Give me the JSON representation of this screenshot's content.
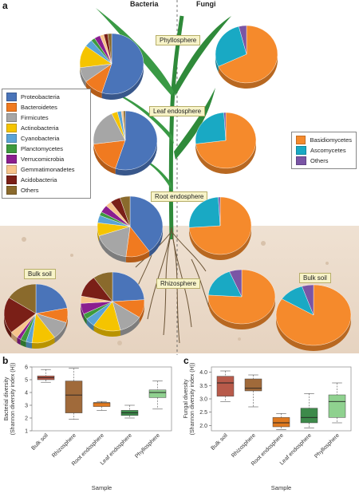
{
  "panel_a": {
    "letter": "a",
    "col_bacteria": "Bacteria",
    "col_fungi": "Fungi",
    "zones": {
      "phyllosphere": "Phyllosphere",
      "leaf_endosphere": "Leaf endosphere",
      "root_endosphere": "Root endosphere",
      "rhizosphere": "Rhizosphere",
      "bulk_soil": "Bulk soil"
    },
    "bacteria_legend": [
      {
        "label": "Proteobacteria",
        "color": "#4a74b9"
      },
      {
        "label": "Bacteroidetes",
        "color": "#f07a20"
      },
      {
        "label": "Firmicutes",
        "color": "#a6a6a6"
      },
      {
        "label": "Actinobacteria",
        "color": "#f5c400"
      },
      {
        "label": "Cyanobacteria",
        "color": "#5aa3d6"
      },
      {
        "label": "Planctomycetes",
        "color": "#3d9a3d"
      },
      {
        "label": "Verrucomicrobia",
        "color": "#8b1e8f"
      },
      {
        "label": "Gemmatimonadetes",
        "color": "#f7c48b"
      },
      {
        "label": "Acidobacteria",
        "color": "#7a1f17"
      },
      {
        "label": "Others",
        "color": "#8a6a2c"
      }
    ],
    "fungi_legend": [
      {
        "label": "Basidiomycetes",
        "color": "#f58a2c"
      },
      {
        "label": "Ascomycetes",
        "color": "#19a9c4"
      },
      {
        "label": "Others",
        "color": "#7a55a5"
      }
    ],
    "bacteria_pies": {
      "phyllosphere": [
        55,
        10,
        8,
        12,
        4,
        2,
        3,
        2,
        2,
        2
      ],
      "leaf_endosphere": [
        55,
        18,
        20,
        3,
        2,
        0,
        0,
        1,
        0,
        1
      ],
      "root_endosphere": [
        40,
        12,
        18,
        7,
        4,
        2,
        4,
        3,
        5,
        5
      ],
      "rhizosphere": [
        24,
        10,
        12,
        14,
        5,
        3,
        6,
        4,
        12,
        10
      ],
      "bulk_soil": [
        22,
        8,
        10,
        12,
        3,
        3,
        2,
        4,
        20,
        16
      ]
    },
    "fungi_pies": {
      "phyllosphere": [
        68,
        28,
        4
      ],
      "leaf_endosphere": [
        73,
        26,
        1
      ],
      "root_endosphere": [
        74,
        25,
        1
      ],
      "rhizosphere": [
        76,
        18,
        6
      ],
      "bulk_soil": [
        84,
        11,
        5
      ]
    }
  },
  "panel_b": {
    "letter": "b",
    "ylabel": "Bacterial diversity\n(Shannon diversity index (H))",
    "xlabel": "Sample",
    "yticks": [
      "1",
      "2",
      "3",
      "4",
      "5",
      "6"
    ]
  },
  "panel_c": {
    "letter": "c",
    "ylabel": "Fungal diversity\n(Shannon diversity index (H))",
    "xlabel": "Sample",
    "yticks": [
      "2.0",
      "2.5",
      "3.0",
      "3.5",
      "4.0"
    ]
  },
  "chart_data": [
    {
      "type": "box",
      "ylabel": "Bacterial diversity (Shannon diversity index (H))",
      "xlabel": "Sample",
      "ylim": [
        1,
        6
      ],
      "categories": [
        "Bulk soil",
        "Rhizosphere",
        "Root endosphere",
        "Leaf endosphere",
        "Phyllosphere"
      ],
      "colors": [
        "#b85a4a",
        "#a06a3a",
        "#e07a20",
        "#3d8a4a",
        "#8fd18f"
      ],
      "boxes": [
        {
          "min": 4.8,
          "q1": 5.0,
          "median": 5.15,
          "q3": 5.3,
          "max": 5.8
        },
        {
          "min": 1.9,
          "q1": 2.4,
          "median": 3.8,
          "q3": 4.9,
          "max": 5.9
        },
        {
          "min": 2.6,
          "q1": 2.9,
          "median": 3.2,
          "q3": 3.2,
          "max": 3.3
        },
        {
          "min": 2.0,
          "q1": 2.2,
          "median": 2.4,
          "q3": 2.6,
          "max": 3.0
        },
        {
          "min": 2.7,
          "q1": 3.6,
          "median": 4.0,
          "q3": 4.2,
          "max": 4.9
        }
      ]
    },
    {
      "type": "box",
      "ylabel": "Fungal diversity (Shannon diversity index (H))",
      "xlabel": "Sample",
      "ylim": [
        1.8,
        4.2
      ],
      "categories": [
        "Bulk soil",
        "Rhizosphere",
        "Root endosphere",
        "Leaf endosphere",
        "Phyllosphere"
      ],
      "colors": [
        "#b85a4a",
        "#a06a3a",
        "#e07a20",
        "#3d8a4a",
        "#8fd18f"
      ],
      "boxes": [
        {
          "min": 2.9,
          "q1": 3.1,
          "median": 3.6,
          "q3": 3.85,
          "max": 4.05
        },
        {
          "min": 2.7,
          "q1": 3.3,
          "median": 3.4,
          "q3": 3.75,
          "max": 3.9
        },
        {
          "min": 1.85,
          "q1": 1.95,
          "median": 2.1,
          "q3": 2.3,
          "max": 2.45
        },
        {
          "min": 1.9,
          "q1": 2.1,
          "median": 2.3,
          "q3": 2.65,
          "max": 3.2
        },
        {
          "min": 2.1,
          "q1": 2.3,
          "median": 2.9,
          "q3": 3.15,
          "max": 3.6
        }
      ]
    }
  ]
}
